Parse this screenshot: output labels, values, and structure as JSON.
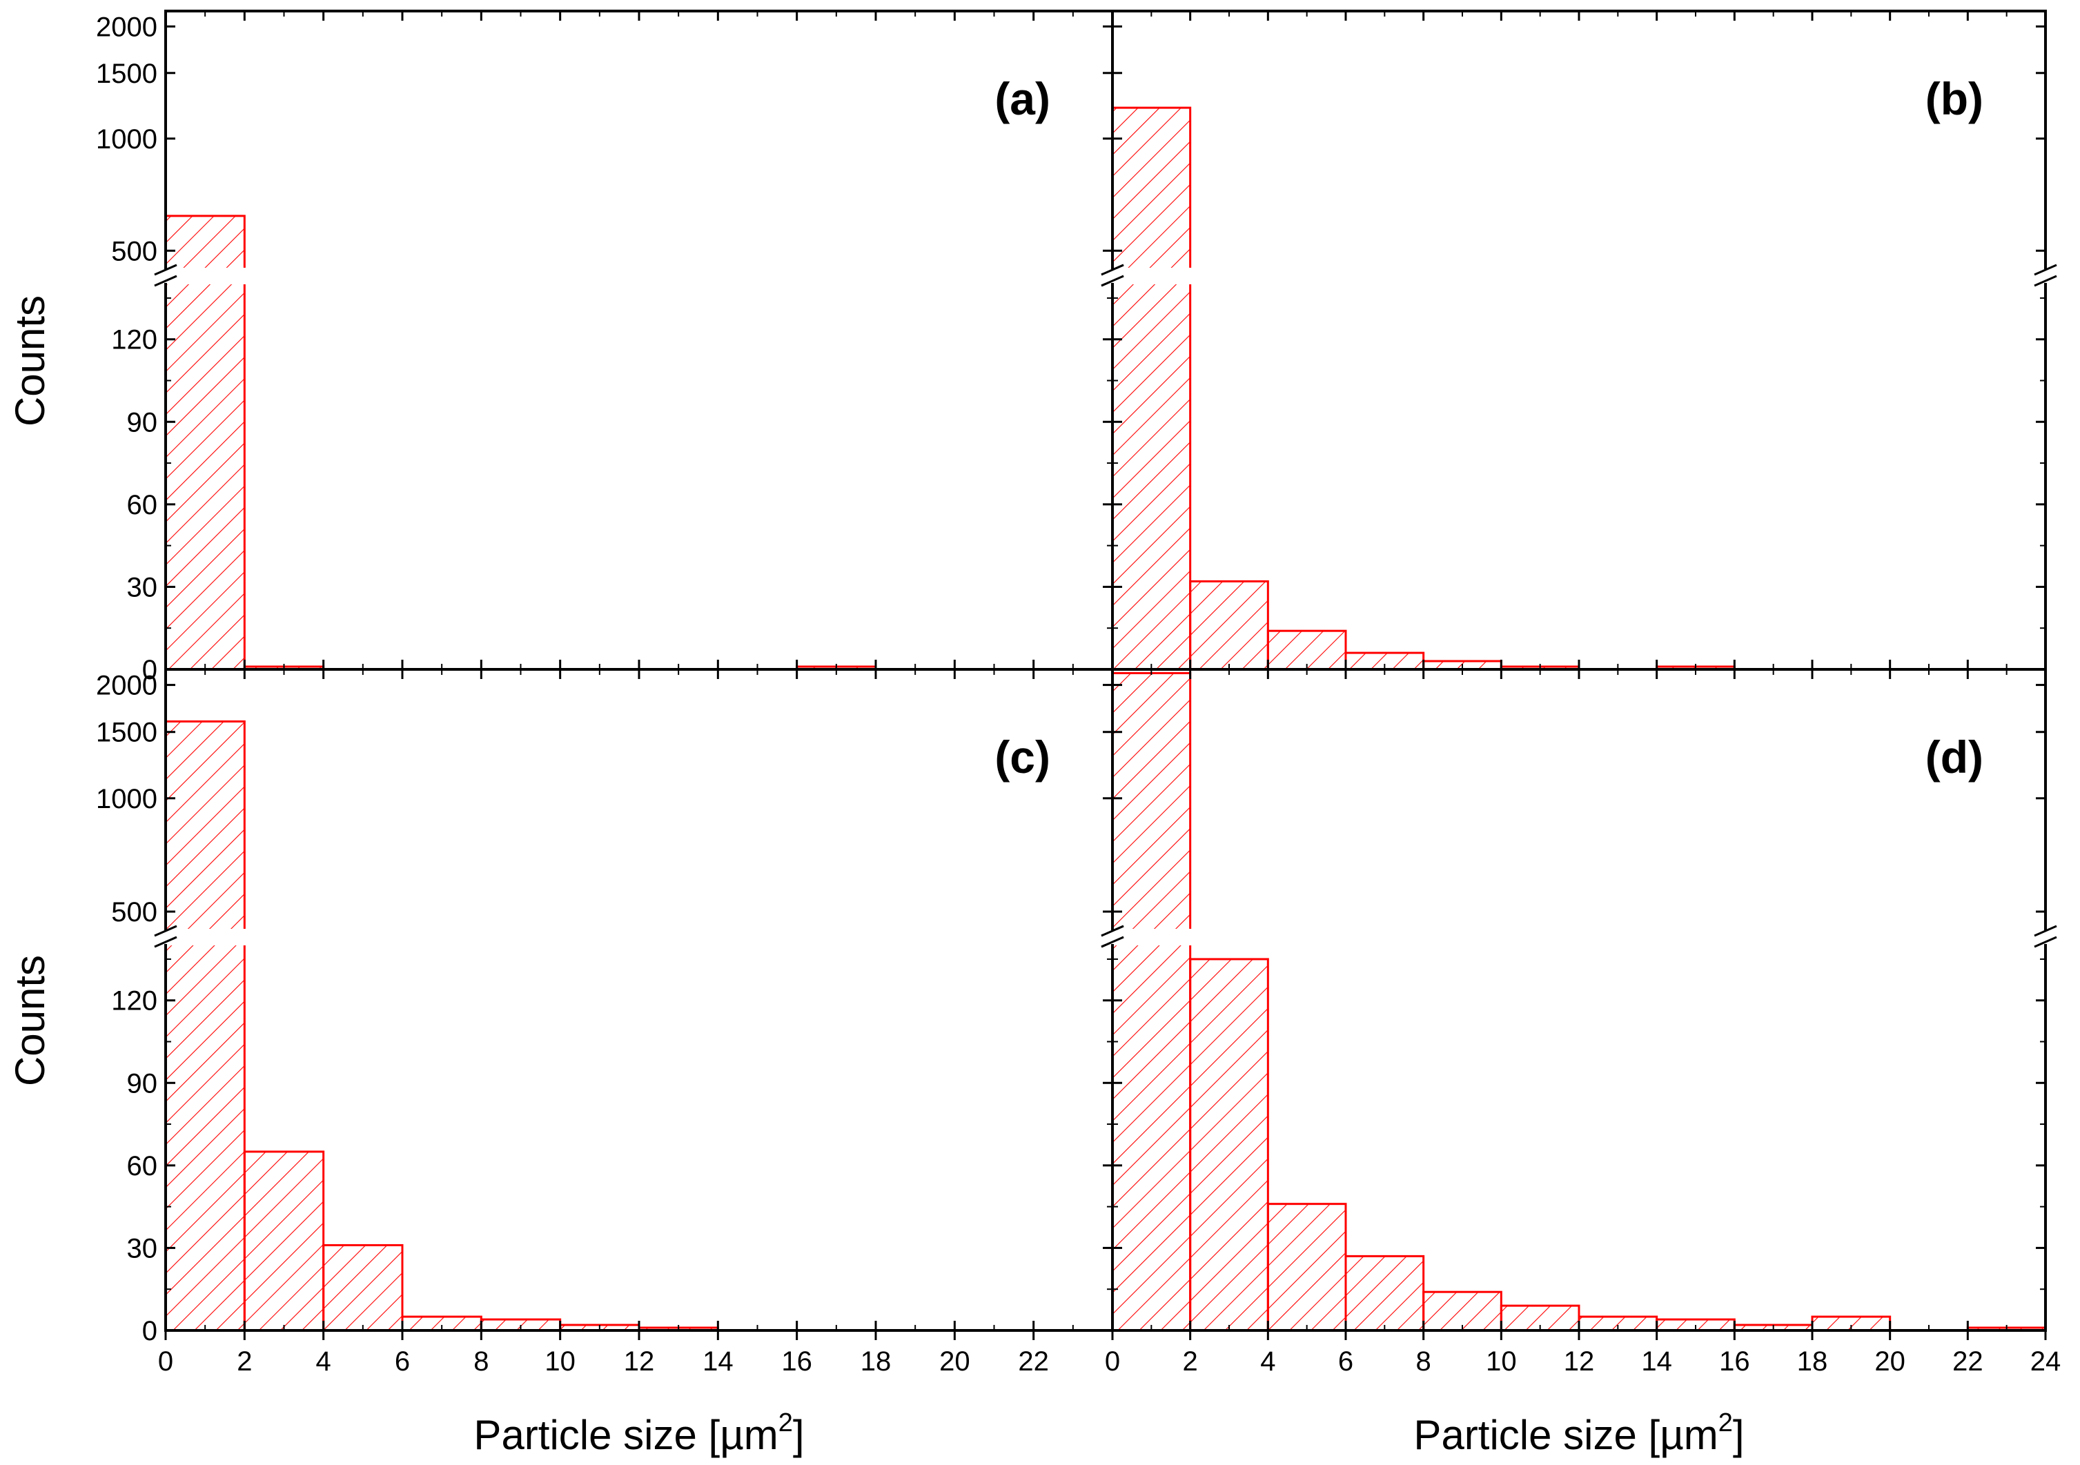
{
  "chart_data": {
    "type": "histogram",
    "bin_width": 2,
    "color": "#ff0000",
    "y_axis_title": "Counts",
    "x_axis_title_text": "Particle size [µm",
    "x_axis_title_sup": "2",
    "x_axis_title_close": "]",
    "y_axis_lower": {
      "range": [
        0,
        140
      ],
      "ticks": [
        0,
        30,
        60,
        90,
        120
      ]
    },
    "y_axis_upper": {
      "range": [
        450,
        2200
      ],
      "scale": "log",
      "ticks": [
        500,
        1000,
        1500,
        2000
      ],
      "axis_break": "between 140 and 450"
    },
    "panels": [
      {
        "label": "(a)",
        "xlim": [
          0,
          24
        ],
        "x_ticks": [
          0,
          2,
          4,
          6,
          8,
          10,
          12,
          14,
          16,
          18,
          20,
          22
        ],
        "bin_starts": [
          0,
          2,
          4,
          6,
          8,
          10,
          12,
          14,
          16,
          18,
          20,
          22
        ],
        "counts": [
          620,
          1,
          0,
          0,
          0,
          0,
          0,
          0,
          1,
          0,
          0,
          0
        ]
      },
      {
        "label": "(b)",
        "xlim": [
          0,
          24
        ],
        "x_ticks": [
          0,
          2,
          4,
          6,
          8,
          10,
          12,
          14,
          16,
          18,
          20,
          22,
          24
        ],
        "bin_starts": [
          0,
          2,
          4,
          6,
          8,
          10,
          12,
          14,
          16,
          18,
          20,
          22
        ],
        "counts": [
          1210,
          32,
          14,
          6,
          3,
          1,
          0,
          1,
          0,
          0,
          0,
          0
        ]
      },
      {
        "label": "(c)",
        "xlim": [
          0,
          24
        ],
        "x_ticks": [
          0,
          2,
          4,
          6,
          8,
          10,
          12,
          14,
          16,
          18,
          20,
          22
        ],
        "bin_starts": [
          0,
          2,
          4,
          6,
          8,
          10,
          12,
          14,
          16,
          18,
          20,
          22
        ],
        "counts": [
          1600,
          65,
          31,
          5,
          4,
          2,
          1,
          0,
          0,
          0,
          0,
          0
        ]
      },
      {
        "label": "(d)",
        "xlim": [
          0,
          24
        ],
        "x_ticks": [
          0,
          2,
          4,
          6,
          8,
          10,
          12,
          14,
          16,
          18,
          20,
          22,
          24
        ],
        "bin_starts": [
          0,
          2,
          4,
          6,
          8,
          10,
          12,
          14,
          16,
          18,
          20,
          22
        ],
        "counts": [
          2150,
          135,
          46,
          27,
          14,
          9,
          5,
          4,
          2,
          5,
          0,
          1
        ]
      }
    ]
  }
}
